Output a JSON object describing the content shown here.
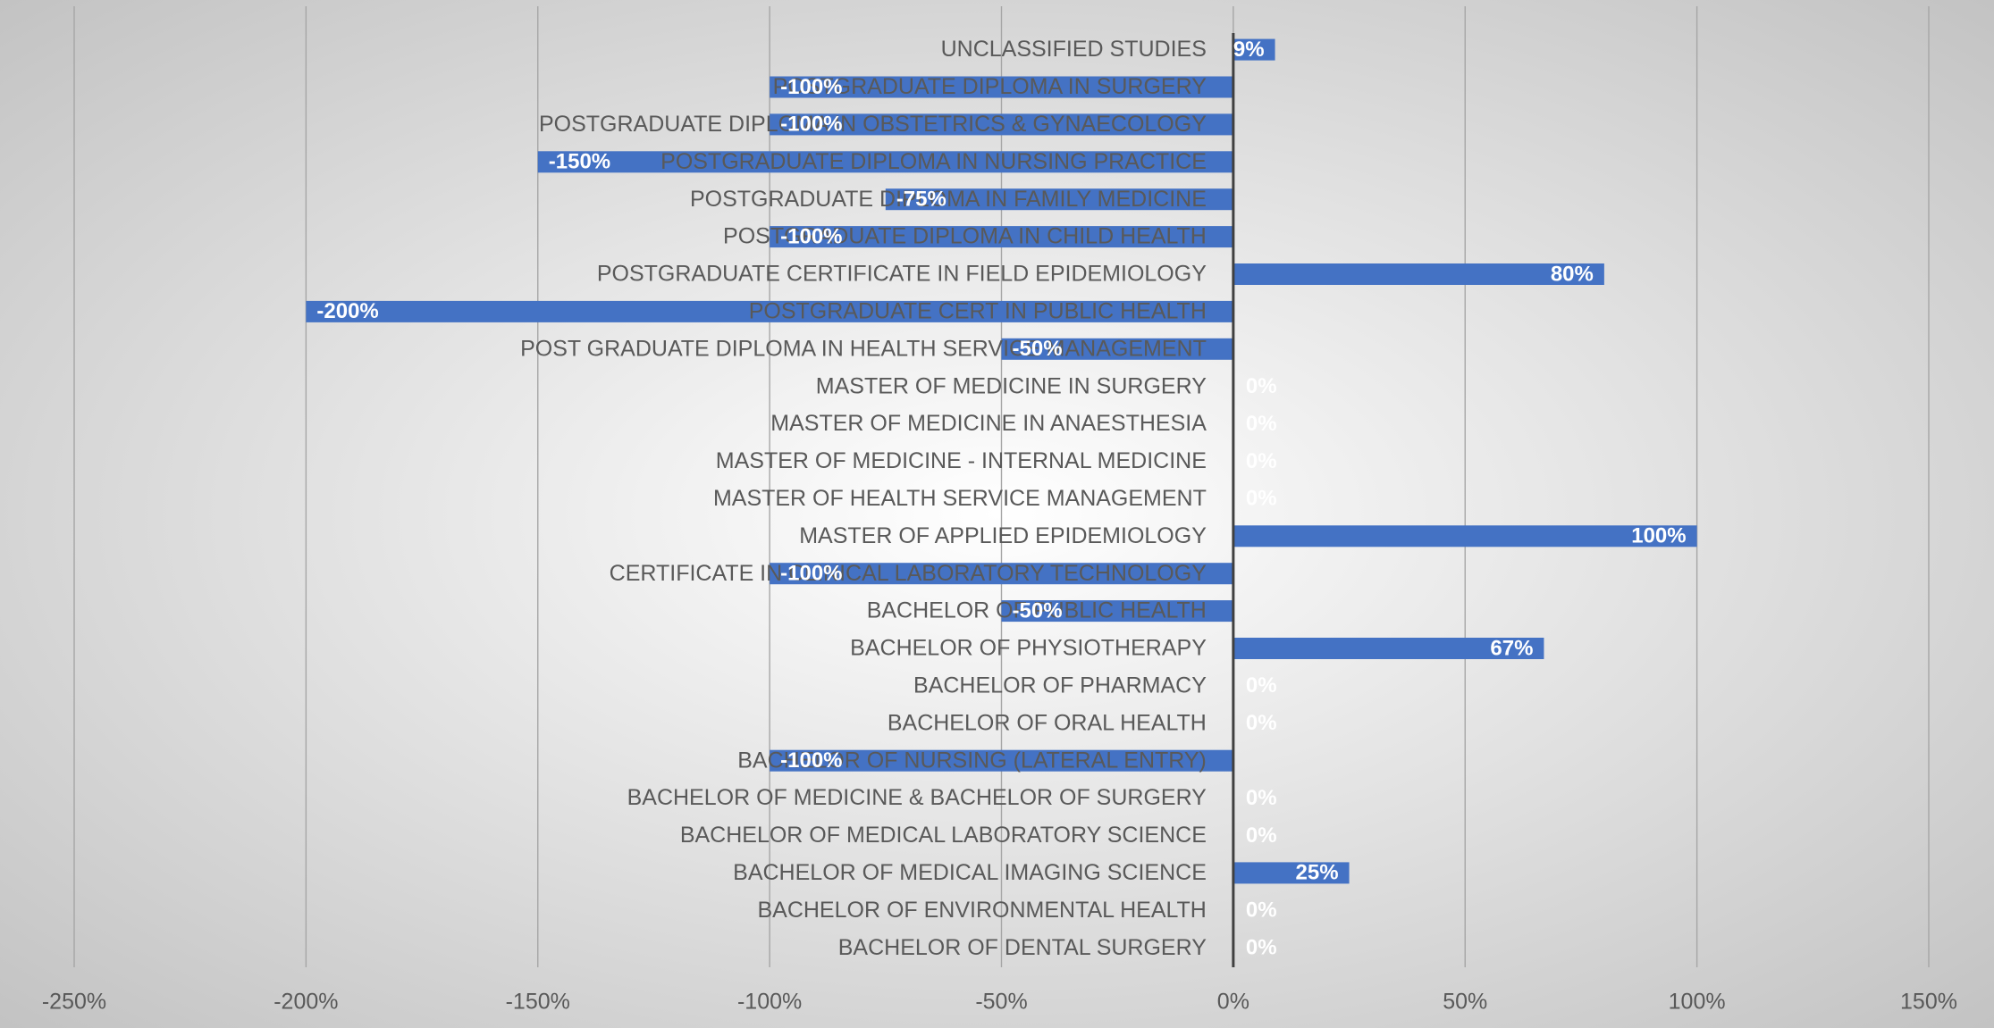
{
  "chart_data": {
    "type": "bar",
    "orientation": "horizontal",
    "categories": [
      "UNCLASSIFIED STUDIES",
      "POSTGRADUATE DIPLOMA IN SURGERY",
      "POSTGRADUATE DIPLOMA IN OBSTETRICS & GYNAECOLOGY",
      "POSTGRADUATE DIPLOMA IN NURSING PRACTICE",
      "POSTGRADUATE DIPLOMA IN FAMILY MEDICINE",
      "POSTGRADUATE DIPLOMA IN CHILD HEALTH",
      "POSTGRADUATE CERTIFICATE IN FIELD EPIDEMIOLOGY",
      "POSTGRADUATE CERT IN PUBLIC HEALTH",
      "POST GRADUATE DIPLOMA IN HEALTH SERVICE MANAGEMENT",
      "MASTER OF MEDICINE IN SURGERY",
      "MASTER OF MEDICINE IN ANAESTHESIA",
      "MASTER OF MEDICINE - INTERNAL MEDICINE",
      "MASTER OF HEALTH SERVICE MANAGEMENT",
      "MASTER OF APPLIED EPIDEMIOLOGY",
      "CERTIFICATE IN CLINICAL LABORATORY TECHNOLOGY",
      "BACHELOR OF PUBLIC HEALTH",
      "BACHELOR OF PHYSIOTHERAPY",
      "BACHELOR OF PHARMACY",
      "BACHELOR OF ORAL HEALTH",
      "BACHELOR OF NURSING (LATERAL ENTRY)",
      "BACHELOR OF MEDICINE & BACHELOR OF SURGERY",
      "BACHELOR OF MEDICAL LABORATORY SCIENCE",
      "BACHELOR OF MEDICAL IMAGING SCIENCE",
      "BACHELOR OF ENVIRONMENTAL HEALTH",
      "BACHELOR OF DENTAL SURGERY"
    ],
    "values": [
      9,
      -100,
      -100,
      -150,
      -75,
      -100,
      80,
      -200,
      -50,
      0,
      0,
      0,
      0,
      100,
      -100,
      -50,
      67,
      0,
      0,
      -100,
      0,
      0,
      25,
      0,
      0
    ],
    "value_labels": [
      "9%",
      "-100%",
      "-100%",
      "-150%",
      "-75%",
      "-100%",
      "80%",
      "-200%",
      "-50%",
      "0%",
      "0%",
      "0%",
      "0%",
      "100%",
      "-100%",
      "-50%",
      "67%",
      "0%",
      "0%",
      "-100%",
      "0%",
      "0%",
      "25%",
      "0%",
      "0%"
    ],
    "color": "#4472c4",
    "xlim": [
      -250,
      150
    ],
    "xticks": [
      {
        "value": -250,
        "label": "-250%"
      },
      {
        "value": -200,
        "label": "-200%"
      },
      {
        "value": -150,
        "label": "-150%"
      },
      {
        "value": -100,
        "label": "-100%"
      },
      {
        "value": -50,
        "label": "-50%"
      },
      {
        "value": 0,
        "label": "0%"
      },
      {
        "value": 50,
        "label": "50%"
      },
      {
        "value": 100,
        "label": "100%"
      },
      {
        "value": 150,
        "label": "150%"
      }
    ],
    "grid": true
  }
}
